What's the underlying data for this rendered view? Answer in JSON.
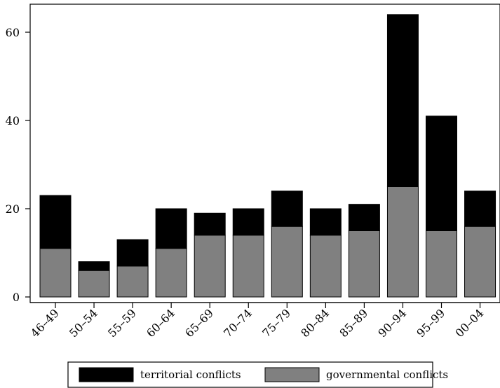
{
  "chart_data": {
    "type": "bar",
    "stacked": true,
    "categories": [
      "46–49",
      "50–54",
      "55–59",
      "60–64",
      "65–69",
      "70–74",
      "75–79",
      "80–84",
      "85–89",
      "90–94",
      "95–99",
      "00–04"
    ],
    "series": [
      {
        "name": "governmental conflicts",
        "color": "#808080",
        "values": [
          11,
          6,
          7,
          11,
          14,
          14,
          16,
          14,
          15,
          25,
          15,
          16
        ]
      },
      {
        "name": "territorial conflicts",
        "color": "#000000",
        "values": [
          12,
          2,
          6,
          9,
          5,
          6,
          8,
          6,
          6,
          39,
          26,
          8
        ]
      }
    ],
    "y_ticks": [
      "0",
      "20",
      "40",
      "60"
    ],
    "ylim": [
      0,
      65
    ],
    "title": "",
    "xlabel": "",
    "ylabel": "",
    "grid": false,
    "legend": {
      "position": "bottom",
      "entries": [
        {
          "label": "territorial conflicts",
          "color": "#000000"
        },
        {
          "label": "governmental conflicts",
          "color": "#808080"
        }
      ]
    }
  }
}
